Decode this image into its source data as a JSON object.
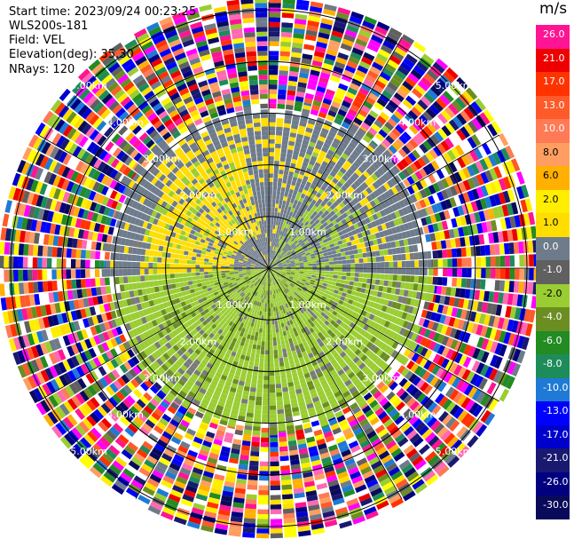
{
  "header": {
    "start_time": "Start time: 2023/09/24 00:23:25",
    "instrument": "WLS200s-181",
    "field": "Field: VEL",
    "elevation": "Elevation(deg): 35.30",
    "nrays": "NRays: 120"
  },
  "chart_data": {
    "type": "heatmap",
    "projection": "polar PPI",
    "range_rings_km": [
      1,
      2,
      3,
      4,
      5
    ],
    "range_labels": [
      "1.00km",
      "2.00km",
      "3.00km",
      "4.00km",
      "5.00km"
    ],
    "nrays": 120,
    "colorbar": {
      "unit": "m/s",
      "ticks": [
        "26.0",
        "21.0",
        "17.0",
        "13.0",
        "10.0",
        "8.0",
        "6.0",
        "2.0",
        "1.0",
        "0.0",
        "-1.0",
        "-2.0",
        "-4.0",
        "-6.0",
        "-8.0",
        "-10.0",
        "-13.0",
        "-17.0",
        "-21.0",
        "-26.0",
        "-30.0"
      ],
      "colors": [
        "#ff1493",
        "#ee0000",
        "#ff3300",
        "#ff5a2a",
        "#ff7a55",
        "#ff9e60",
        "#ffb000",
        "#ffee00",
        "#ffdd00",
        "#6e7b8b",
        "#606060",
        "#9acd32",
        "#6b8e23",
        "#228b22",
        "#1e8c5a",
        "#1e7ad6",
        "#0000ff",
        "#0000cd",
        "#191970",
        "#000080",
        "#0a0a5a"
      ]
    },
    "inner_pattern": {
      "zone_1_to_3km": "gray (0.0) with yellow (1.0–2.0) patches to the north-west/north",
      "southern_half": "yellow-green (-1.0 to -2.0)",
      "outer_zone_4_to_5km": "noise, all colors"
    }
  }
}
